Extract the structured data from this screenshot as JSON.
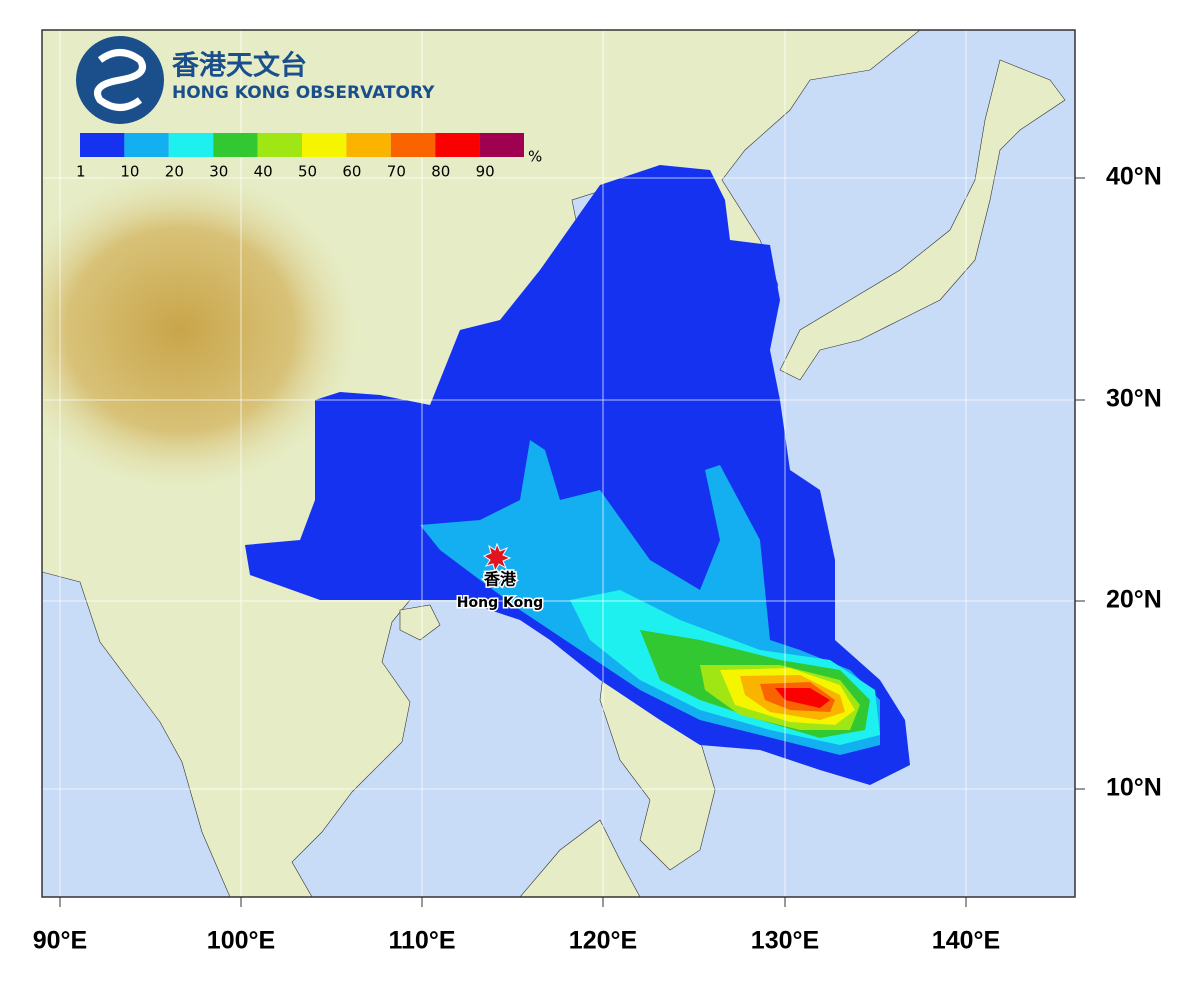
{
  "logo": {
    "name_zh": "香港天文台",
    "name_en": "HONG KONG OBSERVATORY"
  },
  "legend": {
    "labels": [
      "1",
      "10",
      "20",
      "30",
      "40",
      "50",
      "60",
      "70",
      "80",
      "90"
    ],
    "unit": "%",
    "colors": [
      "#1432f0",
      "#14aff0",
      "#1ef0f0",
      "#32c832",
      "#a0e614",
      "#f5f500",
      "#fab400",
      "#fa6400",
      "#fa0000",
      "#a00050"
    ]
  },
  "station": {
    "name_zh": "香港",
    "name_en": "Hong Kong"
  },
  "axes": {
    "lon_labels": [
      "90°E",
      "100°E",
      "110°E",
      "120°E",
      "130°E",
      "140°E"
    ],
    "lat_labels": [
      "40°N",
      "30°N",
      "20°N",
      "10°N"
    ]
  }
}
